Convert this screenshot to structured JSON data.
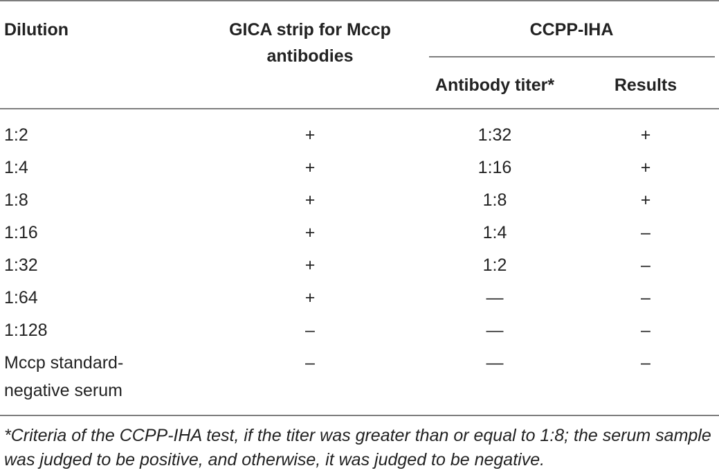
{
  "table": {
    "headers": {
      "dilution": "Dilution",
      "gica_line1": "GICA strip for Mccp",
      "gica_line2": "antibodies",
      "ccpp_iha": "CCPP-IHA",
      "antibody_titer": "Antibody titer*",
      "results": "Results"
    },
    "rows": [
      {
        "dilution": "1:2",
        "gica": "+",
        "titer": "1:32",
        "result": "+"
      },
      {
        "dilution": "1:4",
        "gica": "+",
        "titer": "1:16",
        "result": "+"
      },
      {
        "dilution": "1:8",
        "gica": "+",
        "titer": "1:8",
        "result": "+"
      },
      {
        "dilution": "1:16",
        "gica": "+",
        "titer": "1:4",
        "result": "–"
      },
      {
        "dilution": "1:32",
        "gica": "+",
        "titer": "1:2",
        "result": "–"
      },
      {
        "dilution": "1:64",
        "gica": "+",
        "titer": "—",
        "result": "–"
      },
      {
        "dilution": "1:128",
        "gica": "–",
        "titer": "—",
        "result": "–"
      }
    ],
    "last_row": {
      "dilution_line1": "Mccp standard-",
      "dilution_line2": "negative serum",
      "gica": "–",
      "titer": "—",
      "result": "–"
    },
    "footnote": "*Criteria of the CCPP-IHA test, if the titer was greater than or equal to 1:8; the serum sample was judged to be positive, and otherwise, it was judged to be negative."
  }
}
